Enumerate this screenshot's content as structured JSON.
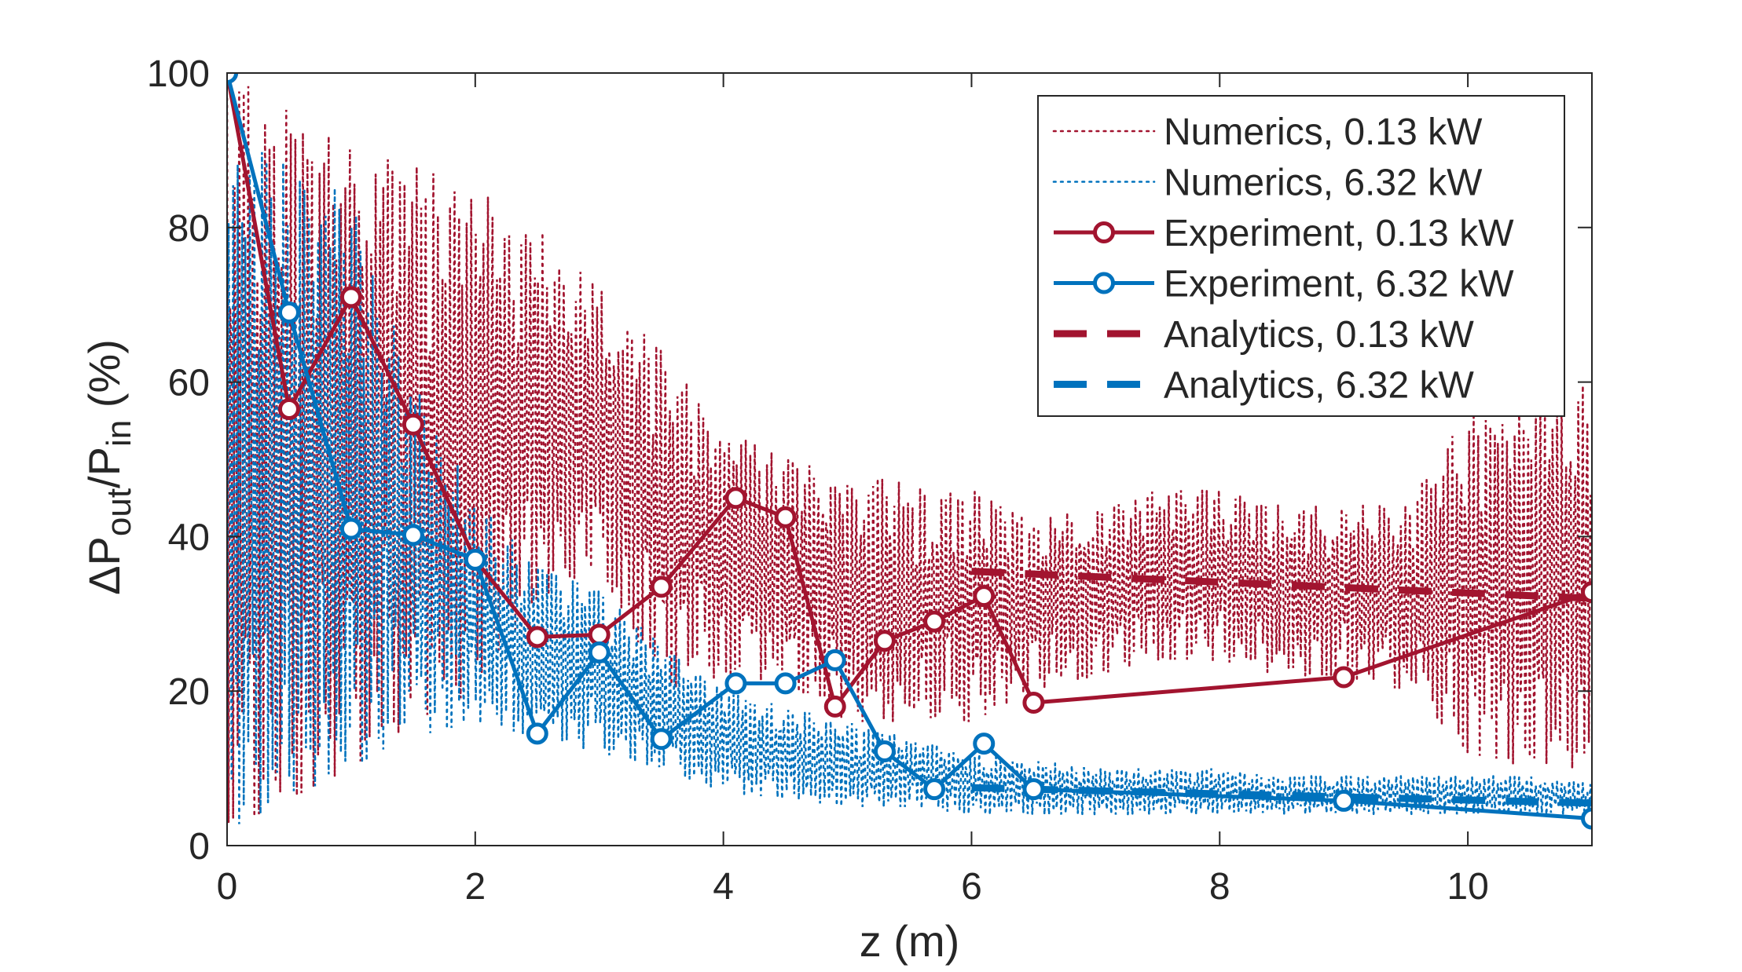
{
  "chart_data": {
    "type": "line",
    "title": "",
    "xlabel": "z (m)",
    "ylabel": {
      "prefix": "ΔP",
      "sub1": "out",
      "mid": "/P",
      "sub2": "in",
      "suffix": " (%)"
    },
    "xlim": [
      0,
      11
    ],
    "ylim": [
      0,
      100
    ],
    "xticks": [
      0,
      2,
      4,
      6,
      8,
      10
    ],
    "yticks": [
      0,
      20,
      40,
      60,
      80,
      100
    ],
    "grid": false,
    "legend_position": "top-right",
    "colors": {
      "red": "#A2142F",
      "blue": "#0072BD"
    },
    "series": [
      {
        "name": "Numerics, 0.13 kW",
        "style": "dotted",
        "color": "#A2142F",
        "envelope": {
          "x": [
            0.0,
            0.5,
            1.0,
            1.5,
            2.0,
            2.5,
            3.0,
            3.5,
            4.0,
            4.5,
            5.0,
            5.5,
            6.0,
            6.5,
            7.0,
            7.5,
            8.0,
            8.5,
            9.0,
            9.5,
            10.0,
            10.5,
            11.0
          ],
          "min": [
            2,
            6,
            10,
            16,
            20,
            32,
            36,
            20,
            22,
            21,
            16,
            16,
            16,
            20,
            22,
            24,
            24,
            22,
            22,
            20,
            12,
            10,
            10
          ],
          "max": [
            100,
            95,
            90,
            88,
            85,
            80,
            72,
            64,
            54,
            50,
            48,
            47,
            46,
            42,
            44,
            46,
            46,
            44,
            44,
            44,
            56,
            58,
            62
          ]
        }
      },
      {
        "name": "Numerics, 6.32 kW",
        "style": "dotted",
        "color": "#0072BD",
        "envelope": {
          "x": [
            0.0,
            0.5,
            1.0,
            1.5,
            2.0,
            2.5,
            3.0,
            3.5,
            4.0,
            4.5,
            5.0,
            5.5,
            6.0,
            6.5,
            7.0,
            7.5,
            8.0,
            8.5,
            9.0,
            9.5,
            10.0,
            10.5,
            11.0
          ],
          "min": [
            2,
            6,
            10,
            14,
            16,
            14,
            12,
            10,
            7,
            6,
            5,
            5,
            4,
            4,
            4,
            4,
            4,
            4,
            4,
            4,
            4,
            4,
            4
          ],
          "max": [
            92,
            88,
            84,
            60,
            45,
            36,
            33,
            26,
            20,
            18,
            16,
            14,
            12,
            11,
            10,
            10,
            10,
            9,
            9,
            9,
            9,
            9,
            8
          ]
        }
      },
      {
        "name": "Experiment, 0.13 kW",
        "style": "solid-circle",
        "color": "#A2142F",
        "x": [
          0,
          0.5,
          1.0,
          1.5,
          2.0,
          2.5,
          3.0,
          3.5,
          4.1,
          4.5,
          4.9,
          5.3,
          5.7,
          6.1,
          6.5,
          9.0,
          11.0
        ],
        "y": [
          100,
          56.5,
          71,
          54.5,
          37,
          27,
          27.3,
          33.5,
          45,
          42.5,
          18,
          26.5,
          29,
          32.3,
          18.5,
          21.8,
          32.8
        ]
      },
      {
        "name": "Experiment, 6.32 kW",
        "style": "solid-circle",
        "color": "#0072BD",
        "x": [
          0,
          0.5,
          1.0,
          1.5,
          2.0,
          2.5,
          3.0,
          3.5,
          4.1,
          4.5,
          4.9,
          5.3,
          5.7,
          6.1,
          6.5,
          9.0,
          11.0
        ],
        "y": [
          100,
          69,
          41,
          40.2,
          37,
          14.5,
          25,
          13.8,
          21,
          21,
          24,
          12.2,
          7.3,
          13.2,
          7.3,
          5.8,
          3.5
        ]
      },
      {
        "name": "Analytics, 0.13 kW",
        "style": "dashed",
        "color": "#A2142F",
        "x": [
          6.0,
          11.0
        ],
        "y": [
          35.5,
          32
        ]
      },
      {
        "name": "Analytics, 6.32 kW",
        "style": "dashed",
        "color": "#0072BD",
        "x": [
          6.0,
          11.0
        ],
        "y": [
          7.5,
          5.5
        ]
      }
    ]
  }
}
